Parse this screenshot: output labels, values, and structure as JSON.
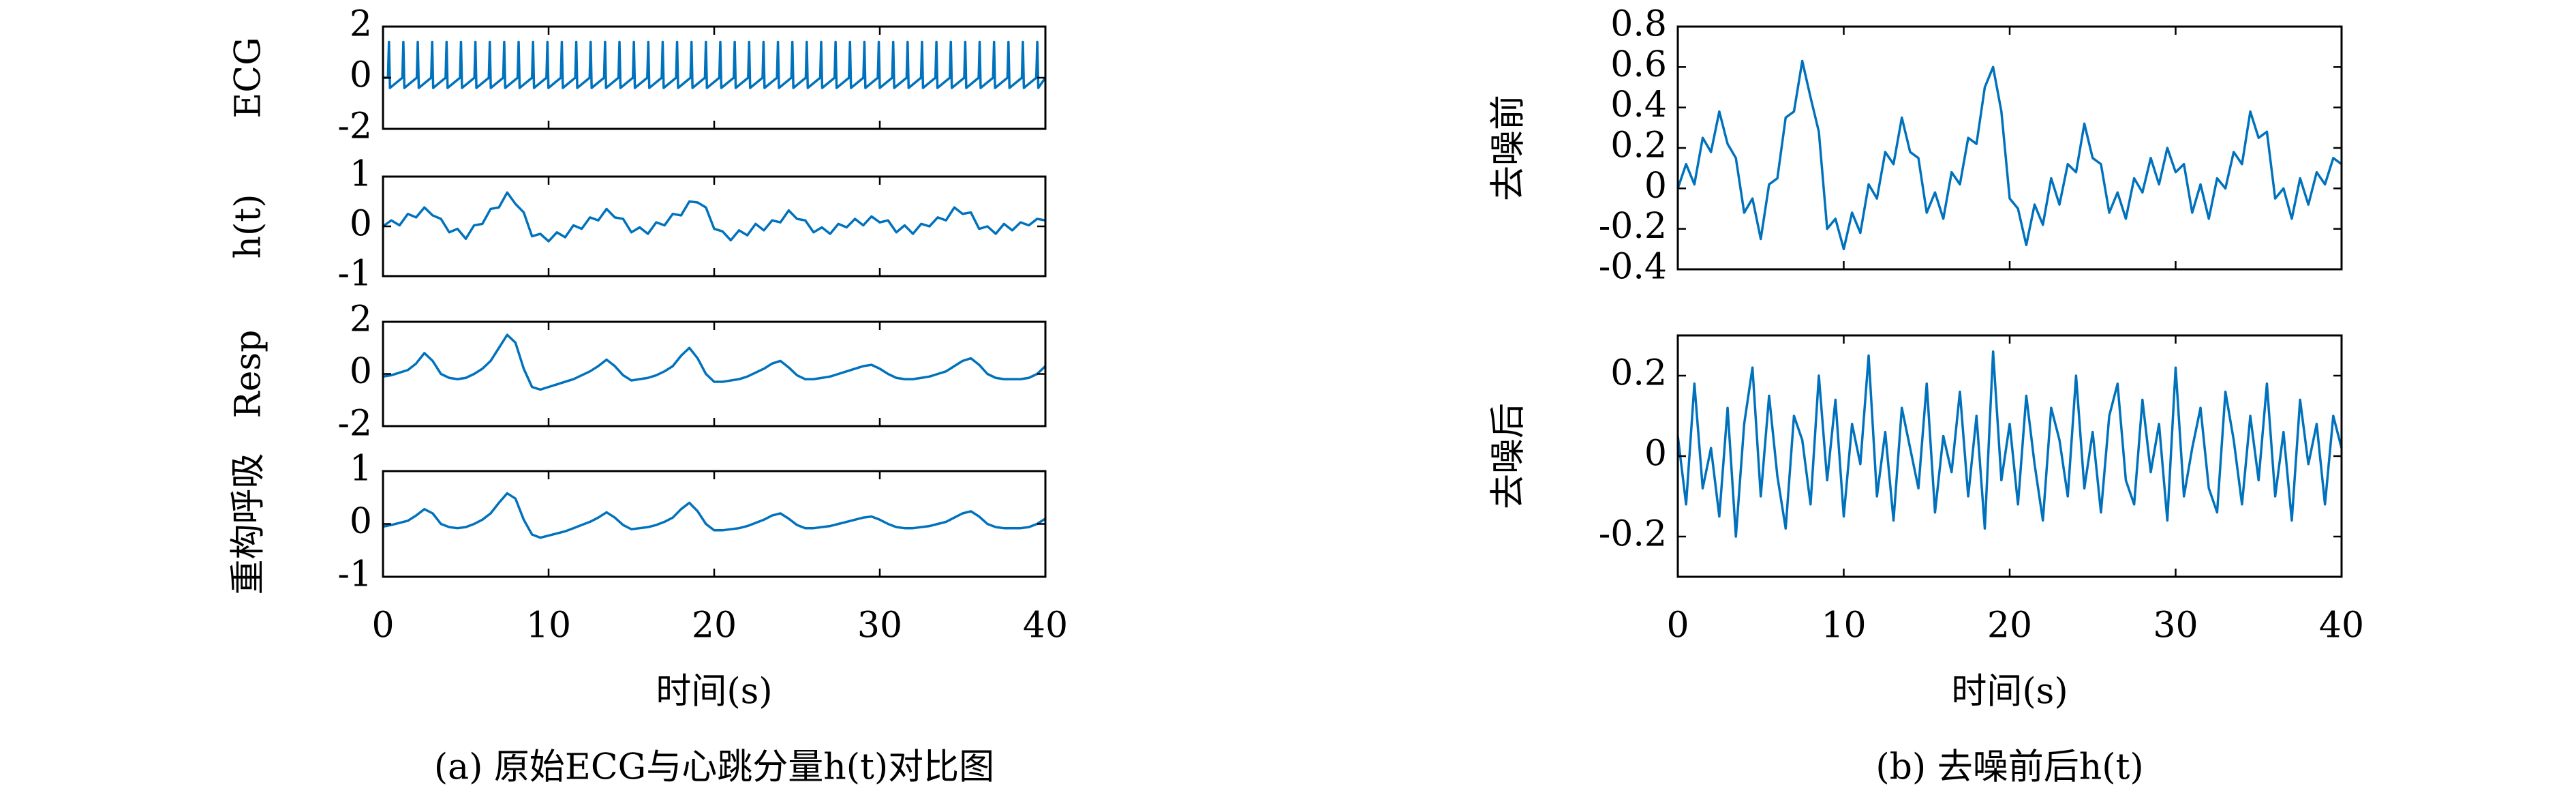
{
  "chart_data": [
    {
      "type": "line",
      "ylabel": "ECG",
      "color": "#0072bd",
      "xlim": [
        0,
        40
      ],
      "xticks": [
        0,
        10,
        20,
        30,
        40
      ],
      "ylim": [
        -2,
        2
      ],
      "yticks": [
        -2,
        0,
        2
      ],
      "x": [
        0,
        0.3,
        0.36,
        0.42,
        1.17,
        1.23,
        1.29,
        2.04,
        2.1,
        2.16,
        2.91,
        2.97,
        3.03,
        3.78,
        3.84,
        3.9,
        4.65,
        4.71,
        4.77,
        5.52,
        5.58,
        5.64,
        6.39,
        6.45,
        6.51,
        7.26,
        7.32,
        7.38,
        8.13,
        8.19,
        8.25,
        9,
        9.06,
        9.12,
        9.87,
        9.93,
        9.99,
        10.74,
        10.8,
        10.86,
        11.61,
        11.67,
        11.73,
        12.48,
        12.54,
        12.6,
        13.35,
        13.41,
        13.47,
        14.22,
        14.28,
        14.34,
        15.09,
        15.15,
        15.21,
        15.96,
        16.02,
        16.08,
        16.83,
        16.89,
        16.95,
        17.7,
        17.76,
        17.82,
        18.57,
        18.63,
        18.69,
        19.44,
        19.5,
        19.56,
        20.31,
        20.37,
        20.43,
        21.18,
        21.24,
        21.3,
        22.05,
        22.11,
        22.17,
        22.92,
        22.98,
        23.04,
        23.79,
        23.85,
        23.91,
        24.66,
        24.72,
        24.78,
        25.53,
        25.59,
        25.65,
        26.4,
        26.46,
        26.52,
        27.27,
        27.33,
        27.39,
        28.14,
        28.2,
        28.26,
        29.01,
        29.07,
        29.13,
        29.88,
        29.94,
        30,
        30.75,
        30.81,
        30.87,
        31.62,
        31.68,
        31.74,
        32.49,
        32.55,
        32.61,
        33.36,
        33.42,
        33.48,
        34.23,
        34.29,
        34.35,
        35.1,
        35.16,
        35.22,
        35.97,
        36.03,
        36.09,
        36.84,
        36.9,
        36.96,
        37.71,
        37.77,
        37.83,
        38.58,
        38.64,
        38.7,
        39.45,
        39.51,
        39.57,
        40
      ],
      "values": [
        0,
        0,
        1.4,
        -0.4,
        0,
        1.4,
        -0.4,
        0,
        1.4,
        -0.4,
        0,
        1.4,
        -0.4,
        0,
        1.4,
        -0.4,
        0,
        1.4,
        -0.4,
        0,
        1.4,
        -0.4,
        0,
        1.4,
        -0.4,
        0,
        1.4,
        -0.4,
        0,
        1.4,
        -0.4,
        0,
        1.4,
        -0.4,
        0,
        1.4,
        -0.4,
        0,
        1.4,
        -0.4,
        0,
        1.4,
        -0.4,
        0,
        1.4,
        -0.4,
        0,
        1.4,
        -0.4,
        0,
        1.4,
        -0.4,
        0,
        1.4,
        -0.4,
        0,
        1.4,
        -0.4,
        0,
        1.4,
        -0.4,
        0,
        1.4,
        -0.4,
        0,
        1.4,
        -0.4,
        0,
        1.4,
        -0.4,
        0,
        1.4,
        -0.4,
        0,
        1.4,
        -0.4,
        0,
        1.4,
        -0.4,
        0,
        1.4,
        -0.4,
        0,
        1.4,
        -0.4,
        0,
        1.4,
        -0.4,
        0,
        1.4,
        -0.4,
        0,
        1.4,
        -0.4,
        0,
        1.4,
        -0.4,
        0,
        1.4,
        -0.4,
        0,
        1.4,
        -0.4,
        0,
        1.4,
        -0.4,
        0,
        1.4,
        -0.4,
        0,
        1.4,
        -0.4,
        0,
        1.4,
        -0.4,
        0,
        1.4,
        -0.4,
        0,
        1.4,
        -0.4,
        0,
        1.4,
        -0.4,
        0,
        1.4,
        -0.4,
        0,
        1.4,
        -0.4,
        0,
        1.4,
        -0.4,
        0,
        1.4,
        -0.4,
        0,
        1.4,
        -0.4,
        0
      ]
    },
    {
      "type": "line",
      "ylabel": "h(t)",
      "color": "#0072bd",
      "xlim": [
        0,
        40
      ],
      "xticks": [
        0,
        10,
        20,
        30,
        40
      ],
      "ylim": [
        -1,
        1
      ],
      "yticks": [
        -1,
        0,
        1
      ],
      "x": [
        0,
        0.5,
        1,
        1.5,
        2,
        2.5,
        3,
        3.5,
        4,
        4.5,
        5,
        5.5,
        6,
        6.5,
        7,
        7.5,
        8,
        8.5,
        9,
        9.5,
        10,
        10.5,
        11,
        11.5,
        12,
        12.5,
        13,
        13.5,
        14,
        14.5,
        15,
        15.5,
        16,
        16.5,
        17,
        17.5,
        18,
        18.5,
        19,
        19.5,
        20,
        20.5,
        21,
        21.5,
        22,
        22.5,
        23,
        23.5,
        24,
        24.5,
        25,
        25.5,
        26,
        26.5,
        27,
        27.5,
        28,
        28.5,
        29,
        29.5,
        30,
        30.5,
        31,
        31.5,
        32,
        32.5,
        33,
        33.5,
        34,
        34.5,
        35,
        35.5,
        36,
        36.5,
        37,
        37.5,
        38,
        38.5,
        39,
        39.5,
        40
      ],
      "values": [
        0,
        0.12,
        0.02,
        0.25,
        0.18,
        0.38,
        0.22,
        0.15,
        -0.12,
        -0.05,
        -0.25,
        0.02,
        0.05,
        0.35,
        0.38,
        0.68,
        0.45,
        0.28,
        -0.2,
        -0.15,
        -0.3,
        -0.12,
        -0.22,
        0.02,
        -0.05,
        0.18,
        0.12,
        0.35,
        0.18,
        0.15,
        -0.12,
        -0.02,
        -0.15,
        0.08,
        0.02,
        0.25,
        0.22,
        0.5,
        0.48,
        0.38,
        -0.05,
        -0.1,
        -0.28,
        -0.08,
        -0.18,
        0.05,
        -0.08,
        0.12,
        0.08,
        0.32,
        0.15,
        0.12,
        -0.12,
        -0.02,
        -0.15,
        0.05,
        -0.02,
        0.15,
        0.02,
        0.2,
        0.08,
        0.12,
        -0.12,
        0.02,
        -0.15,
        0.05,
        0,
        0.18,
        0.12,
        0.38,
        0.25,
        0.28,
        -0.05,
        0,
        -0.15,
        0.05,
        -0.08,
        0.08,
        0.02,
        0.15,
        0.12
      ]
    },
    {
      "type": "line",
      "ylabel": "Resp",
      "color": "#0072bd",
      "xlim": [
        0,
        40
      ],
      "xticks": [
        0,
        10,
        20,
        30,
        40
      ],
      "ylim": [
        -2,
        2
      ],
      "yticks": [
        -2,
        0,
        2
      ],
      "x": [
        0,
        0.5,
        1,
        1.5,
        2,
        2.5,
        3,
        3.5,
        4,
        4.5,
        5,
        5.5,
        6,
        6.5,
        7,
        7.5,
        8,
        8.5,
        9,
        9.5,
        10,
        10.5,
        11,
        11.5,
        12,
        12.5,
        13,
        13.5,
        14,
        14.5,
        15,
        15.5,
        16,
        16.5,
        17,
        17.5,
        18,
        18.5,
        19,
        19.5,
        20,
        20.5,
        21,
        21.5,
        22,
        22.5,
        23,
        23.5,
        24,
        24.5,
        25,
        25.5,
        26,
        26.5,
        27,
        27.5,
        28,
        28.5,
        29,
        29.5,
        30,
        30.5,
        31,
        31.5,
        32,
        32.5,
        33,
        33.5,
        34,
        34.5,
        35,
        35.5,
        36,
        36.5,
        37,
        37.5,
        38,
        38.5,
        39,
        39.5,
        40
      ],
      "values": [
        -0.1,
        -0.05,
        0.05,
        0.15,
        0.4,
        0.8,
        0.5,
        0,
        -0.15,
        -0.2,
        -0.15,
        0,
        0.2,
        0.5,
        1.0,
        1.5,
        1.2,
        0.2,
        -0.5,
        -0.6,
        -0.5,
        -0.4,
        -0.3,
        -0.2,
        -0.05,
        0.1,
        0.3,
        0.55,
        0.3,
        -0.05,
        -0.25,
        -0.2,
        -0.15,
        -0.05,
        0.1,
        0.3,
        0.7,
        1.0,
        0.6,
        0,
        -0.3,
        -0.3,
        -0.25,
        -0.2,
        -0.1,
        0.05,
        0.2,
        0.4,
        0.5,
        0.25,
        -0.05,
        -0.2,
        -0.2,
        -0.15,
        -0.1,
        0,
        0.1,
        0.2,
        0.3,
        0.35,
        0.2,
        0,
        -0.15,
        -0.2,
        -0.2,
        -0.15,
        -0.1,
        0,
        0.1,
        0.3,
        0.5,
        0.6,
        0.35,
        0,
        -0.15,
        -0.2,
        -0.2,
        -0.2,
        -0.15,
        0,
        0.3
      ]
    },
    {
      "type": "line",
      "ylabel": "重构呼吸",
      "xlabel": "时间(s)",
      "caption": "(a) 原始ECG与心跳分量h(t)对比图",
      "color": "#0072bd",
      "xlim": [
        0,
        40
      ],
      "xticks": [
        0,
        10,
        20,
        30,
        40
      ],
      "ylim": [
        -1,
        1
      ],
      "yticks": [
        -1,
        0,
        1
      ],
      "x": [
        0,
        0.5,
        1,
        1.5,
        2,
        2.5,
        3,
        3.5,
        4,
        4.5,
        5,
        5.5,
        6,
        6.5,
        7,
        7.5,
        8,
        8.5,
        9,
        9.5,
        10,
        10.5,
        11,
        11.5,
        12,
        12.5,
        13,
        13.5,
        14,
        14.5,
        15,
        15.5,
        16,
        16.5,
        17,
        17.5,
        18,
        18.5,
        19,
        19.5,
        20,
        20.5,
        21,
        21.5,
        22,
        22.5,
        23,
        23.5,
        24,
        24.5,
        25,
        25.5,
        26,
        26.5,
        27,
        27.5,
        28,
        28.5,
        29,
        29.5,
        30,
        30.5,
        31,
        31.5,
        32,
        32.5,
        33,
        33.5,
        34,
        34.5,
        35,
        35.5,
        36,
        36.5,
        37,
        37.5,
        38,
        38.5,
        39,
        39.5,
        40
      ],
      "values": [
        -0.05,
        -0.02,
        0.02,
        0.06,
        0.16,
        0.28,
        0.2,
        0,
        -0.06,
        -0.08,
        -0.06,
        0,
        0.08,
        0.2,
        0.4,
        0.58,
        0.48,
        0.08,
        -0.2,
        -0.26,
        -0.22,
        -0.18,
        -0.14,
        -0.08,
        -0.02,
        0.04,
        0.12,
        0.22,
        0.12,
        -0.02,
        -0.1,
        -0.08,
        -0.06,
        -0.02,
        0.04,
        0.12,
        0.28,
        0.4,
        0.24,
        0,
        -0.12,
        -0.12,
        -0.1,
        -0.08,
        -0.04,
        0.02,
        0.08,
        0.16,
        0.2,
        0.1,
        -0.02,
        -0.08,
        -0.08,
        -0.06,
        -0.04,
        0,
        0.04,
        0.08,
        0.12,
        0.14,
        0.08,
        0,
        -0.06,
        -0.08,
        -0.08,
        -0.06,
        -0.04,
        0,
        0.04,
        0.12,
        0.2,
        0.24,
        0.14,
        0,
        -0.06,
        -0.08,
        -0.08,
        -0.08,
        -0.06,
        0,
        0.1
      ]
    },
    {
      "type": "line",
      "ylabel": "去噪前",
      "color": "#0072bd",
      "xlim": [
        0,
        40
      ],
      "xticks": [
        0,
        10,
        20,
        30,
        40
      ],
      "ylim": [
        -0.4,
        0.8
      ],
      "yticks": [
        -0.4,
        -0.2,
        0,
        0.2,
        0.4,
        0.6,
        0.8
      ],
      "x": [
        0,
        0.5,
        1,
        1.5,
        2,
        2.5,
        3,
        3.5,
        4,
        4.5,
        5,
        5.5,
        6,
        6.5,
        7,
        7.5,
        8,
        8.5,
        9,
        9.5,
        10,
        10.5,
        11,
        11.5,
        12,
        12.5,
        13,
        13.5,
        14,
        14.5,
        15,
        15.5,
        16,
        16.5,
        17,
        17.5,
        18,
        18.5,
        19,
        19.5,
        20,
        20.5,
        21,
        21.5,
        22,
        22.5,
        23,
        23.5,
        24,
        24.5,
        25,
        25.5,
        26,
        26.5,
        27,
        27.5,
        28,
        28.5,
        29,
        29.5,
        30,
        30.5,
        31,
        31.5,
        32,
        32.5,
        33,
        33.5,
        34,
        34.5,
        35,
        35.5,
        36,
        36.5,
        37,
        37.5,
        38,
        38.5,
        39,
        39.5,
        40
      ],
      "values": [
        0,
        0.12,
        0.02,
        0.25,
        0.18,
        0.38,
        0.22,
        0.15,
        -0.12,
        -0.05,
        -0.25,
        0.02,
        0.05,
        0.35,
        0.38,
        0.63,
        0.45,
        0.28,
        -0.2,
        -0.15,
        -0.3,
        -0.12,
        -0.22,
        0.02,
        -0.05,
        0.18,
        0.12,
        0.35,
        0.18,
        0.15,
        -0.12,
        -0.02,
        -0.15,
        0.08,
        0.02,
        0.25,
        0.22,
        0.5,
        0.6,
        0.38,
        -0.05,
        -0.1,
        -0.28,
        -0.08,
        -0.18,
        0.05,
        -0.08,
        0.12,
        0.08,
        0.32,
        0.15,
        0.12,
        -0.12,
        -0.02,
        -0.15,
        0.05,
        -0.02,
        0.15,
        0.02,
        0.2,
        0.08,
        0.12,
        -0.12,
        0.02,
        -0.15,
        0.05,
        0,
        0.18,
        0.12,
        0.38,
        0.25,
        0.28,
        -0.05,
        0,
        -0.15,
        0.05,
        -0.08,
        0.08,
        0.02,
        0.15,
        0.12
      ]
    },
    {
      "type": "line",
      "ylabel": "去噪后",
      "xlabel": "时间(s)",
      "caption": "(b) 去噪前后h(t)",
      "color": "#0072bd",
      "xlim": [
        0,
        40
      ],
      "xticks": [
        0,
        10,
        20,
        30,
        40
      ],
      "ylim": [
        -0.3,
        0.3
      ],
      "yticks": [
        -0.2,
        0,
        0.2
      ],
      "x": [
        0,
        0.5,
        1,
        1.5,
        2,
        2.5,
        3,
        3.5,
        4,
        4.5,
        5,
        5.5,
        6,
        6.5,
        7,
        7.5,
        8,
        8.5,
        9,
        9.5,
        10,
        10.5,
        11,
        11.5,
        12,
        12.5,
        13,
        13.5,
        14,
        14.5,
        15,
        15.5,
        16,
        16.5,
        17,
        17.5,
        18,
        18.5,
        19,
        19.5,
        20,
        20.5,
        21,
        21.5,
        22,
        22.5,
        23,
        23.5,
        24,
        24.5,
        25,
        25.5,
        26,
        26.5,
        27,
        27.5,
        28,
        28.5,
        29,
        29.5,
        30,
        30.5,
        31,
        31.5,
        32,
        32.5,
        33,
        33.5,
        34,
        34.5,
        35,
        35.5,
        36,
        36.5,
        37,
        37.5,
        38,
        38.5,
        39,
        39.5,
        40
      ],
      "values": [
        0.05,
        -0.12,
        0.18,
        -0.08,
        0.02,
        -0.15,
        0.12,
        -0.2,
        0.08,
        0.22,
        -0.1,
        0.15,
        -0.05,
        -0.18,
        0.1,
        0.04,
        -0.12,
        0.2,
        -0.06,
        0.14,
        -0.15,
        0.08,
        -0.02,
        0.25,
        -0.1,
        0.06,
        -0.16,
        0.12,
        0.02,
        -0.08,
        0.18,
        -0.14,
        0.05,
        -0.04,
        0.16,
        -0.1,
        0.1,
        -0.18,
        0.26,
        -0.06,
        0.08,
        -0.12,
        0.15,
        -0.02,
        -0.16,
        0.12,
        0.04,
        -0.1,
        0.2,
        -0.08,
        0.06,
        -0.14,
        0.1,
        0.18,
        -0.06,
        -0.12,
        0.14,
        -0.04,
        0.08,
        -0.16,
        0.22,
        -0.1,
        0.02,
        0.12,
        -0.08,
        -0.14,
        0.16,
        0.04,
        -0.12,
        0.1,
        -0.06,
        0.18,
        -0.1,
        0.06,
        -0.16,
        0.14,
        -0.02,
        0.08,
        -0.12,
        0.1,
        0.02
      ]
    }
  ]
}
